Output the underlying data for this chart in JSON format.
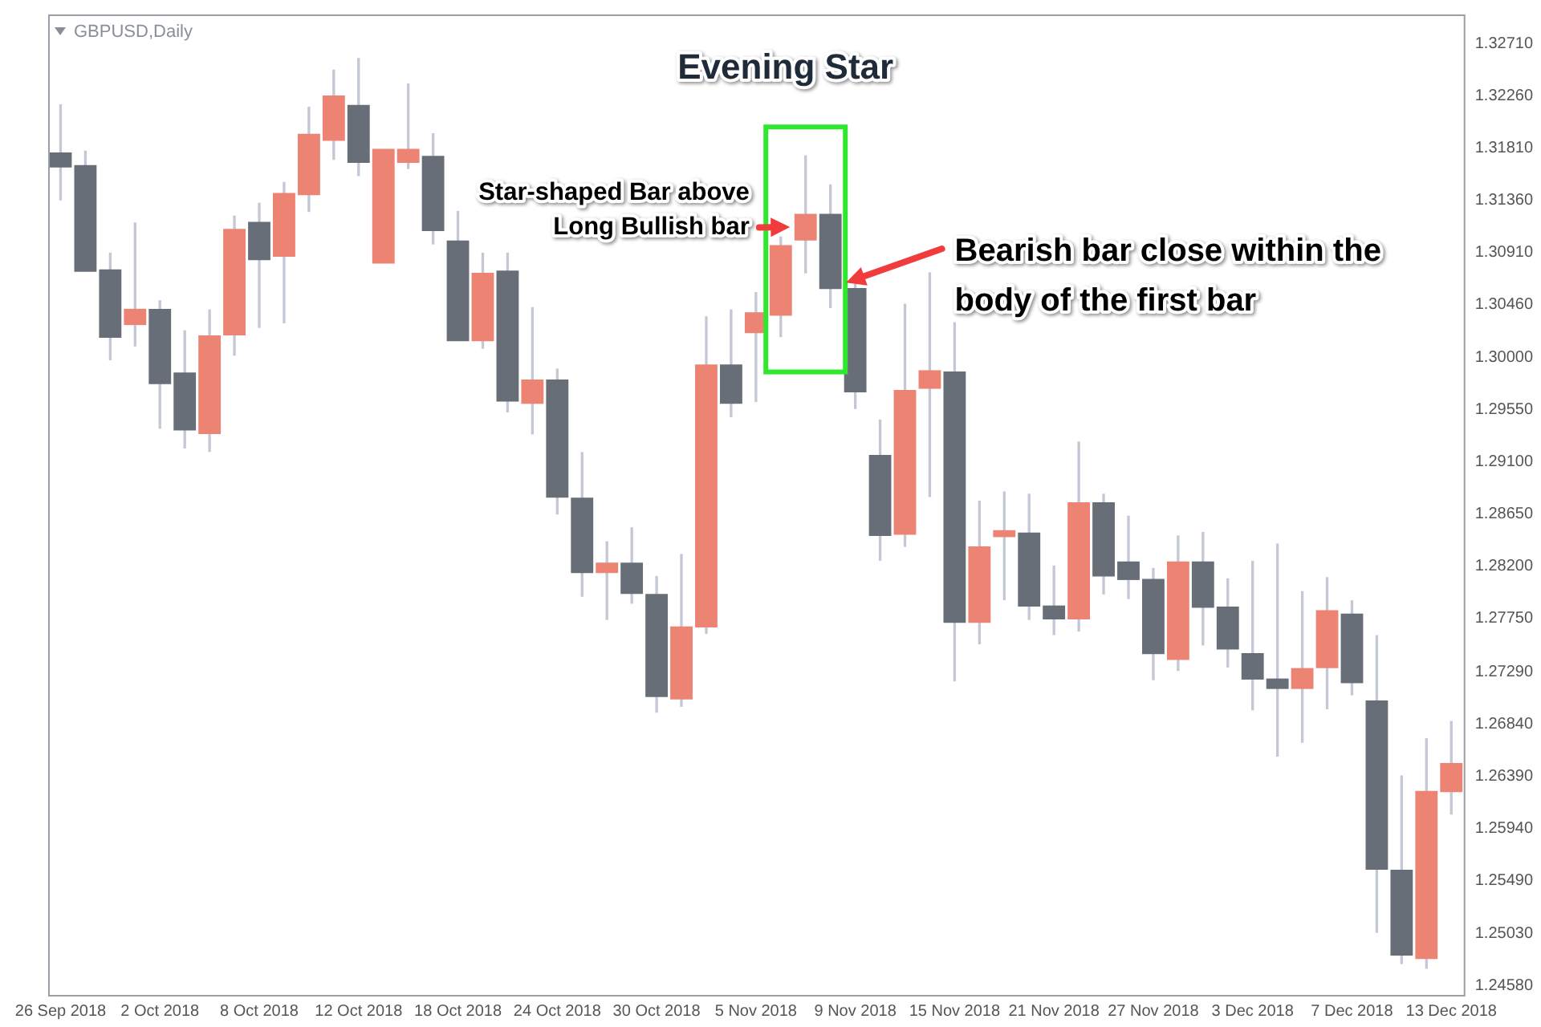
{
  "chart_data": {
    "type": "candlestick",
    "title": "Evening Star",
    "subtitle": "GBPUSD,Daily",
    "annotations": [
      "Star-shaped Bar above Long Bullish bar",
      "Bearish bar close within the body of the first bar"
    ],
    "categories": [
      "26 Sep 2018",
      null,
      null,
      null,
      "2 Oct 2018",
      null,
      null,
      null,
      "8 Oct 2018",
      null,
      null,
      null,
      "12 Oct 2018",
      null,
      null,
      null,
      "18 Oct 2018",
      null,
      null,
      null,
      "24 Oct 2018",
      null,
      null,
      null,
      "30 Oct 2018",
      null,
      null,
      null,
      "5 Nov 2018",
      null,
      null,
      null,
      "9 Nov 2018",
      null,
      null,
      null,
      "15 Nov 2018",
      null,
      null,
      null,
      "21 Nov 2018",
      null,
      null,
      null,
      "27 Nov 2018",
      null,
      null,
      null,
      "3 Dec 2018",
      null,
      null,
      null,
      "7 Dec 2018",
      null,
      null,
      null,
      "13 Dec 2018"
    ],
    "ohlc": [
      [
        1.3177,
        1.3218,
        1.3136,
        1.3164
      ],
      [
        1.3166,
        1.3178,
        1.3074,
        1.3074
      ],
      [
        1.3076,
        1.309,
        1.2998,
        1.3017
      ],
      [
        1.3028,
        1.3116,
        1.301,
        1.3042
      ],
      [
        1.3042,
        1.3049,
        1.2939,
        1.2977
      ],
      [
        1.2987,
        1.3023,
        1.2922,
        1.2937
      ],
      [
        1.2934,
        1.3041,
        1.2919,
        1.3019
      ],
      [
        1.3019,
        1.3122,
        1.3002,
        1.3111
      ],
      [
        1.3117,
        1.3133,
        1.3026,
        1.3084
      ],
      [
        1.3087,
        1.3151,
        1.303,
        1.3142
      ],
      [
        1.314,
        1.3216,
        1.3126,
        1.3193
      ],
      [
        1.3187,
        1.3248,
        1.3171,
        1.3226
      ],
      [
        1.3218,
        1.3258,
        1.3157,
        1.3168
      ],
      [
        1.3081,
        1.318,
        1.3081,
        1.318
      ],
      [
        1.3168,
        1.3236,
        1.3163,
        1.318
      ],
      [
        1.3174,
        1.3193,
        1.3098,
        1.3109
      ],
      [
        1.3101,
        1.3126,
        1.3014,
        1.3014
      ],
      [
        1.3014,
        1.309,
        1.3008,
        1.3073
      ],
      [
        1.3075,
        1.309,
        1.2953,
        1.2962
      ],
      [
        1.296,
        1.3043,
        1.2934,
        1.2981
      ],
      [
        1.2981,
        1.299,
        1.2865,
        1.2879
      ],
      [
        1.2879,
        1.2918,
        1.2794,
        1.2814
      ],
      [
        1.2814,
        1.2841,
        1.2774,
        1.2823
      ],
      [
        1.2823,
        1.2853,
        1.2788,
        1.2796
      ],
      [
        1.2796,
        1.2811,
        1.2694,
        1.2707
      ],
      [
        1.2705,
        1.283,
        1.2699,
        1.2768
      ],
      [
        1.2767,
        1.3035,
        1.2762,
        1.2994
      ],
      [
        1.2994,
        1.3041,
        1.2949,
        1.296
      ],
      [
        1.3021,
        1.3056,
        1.2962,
        1.3039
      ],
      [
        1.3036,
        1.3104,
        1.3018,
        1.3097
      ],
      [
        1.3101,
        1.3174,
        1.3073,
        1.3124
      ],
      [
        1.3124,
        1.3149,
        1.3043,
        1.3059
      ],
      [
        1.306,
        1.3065,
        1.2956,
        1.297
      ],
      [
        1.2916,
        1.2946,
        1.2825,
        1.2846
      ],
      [
        1.2847,
        1.3046,
        1.2837,
        1.2972
      ],
      [
        1.2973,
        1.3073,
        1.288,
        1.2989
      ],
      [
        1.2988,
        1.303,
        1.2721,
        1.2771
      ],
      [
        1.2771,
        1.2876,
        1.2753,
        1.2837
      ],
      [
        1.2845,
        1.2884,
        1.2791,
        1.2851
      ],
      [
        1.2849,
        1.2882,
        1.2774,
        1.2785
      ],
      [
        1.2786,
        1.282,
        1.2761,
        1.2774
      ],
      [
        1.2774,
        1.2927,
        1.2764,
        1.2875
      ],
      [
        1.2875,
        1.2882,
        1.2796,
        1.2811
      ],
      [
        1.2824,
        1.2863,
        1.2792,
        1.2808
      ],
      [
        1.2809,
        1.2818,
        1.2722,
        1.2744
      ],
      [
        1.2739,
        1.2846,
        1.273,
        1.2824
      ],
      [
        1.2824,
        1.2849,
        1.2752,
        1.2784
      ],
      [
        1.2785,
        1.2809,
        1.2733,
        1.2748
      ],
      [
        1.2745,
        1.2824,
        1.2696,
        1.2722
      ],
      [
        1.2723,
        1.2839,
        1.2656,
        1.2714
      ],
      [
        1.2714,
        1.2798,
        1.2668,
        1.2732
      ],
      [
        1.2732,
        1.281,
        1.2697,
        1.2782
      ],
      [
        1.2779,
        1.279,
        1.2709,
        1.2719
      ],
      [
        1.2704,
        1.276,
        1.2504,
        1.2558
      ],
      [
        1.2558,
        1.2639,
        1.2477,
        1.2484
      ],
      [
        1.2481,
        1.2671,
        1.2473,
        1.2626
      ],
      [
        1.2625,
        1.2686,
        1.2606,
        1.265
      ]
    ],
    "colors": [
      "#686e77",
      "#686e77",
      "#686e77",
      "#ec8373",
      "#686e77",
      "#686e77",
      "#ec8373",
      "#ec8373",
      "#686e77",
      "#ec8373",
      "#ec8373",
      "#ec8373",
      "#686e77",
      "#ec8373",
      "#ec8373",
      "#686e77",
      "#686e77",
      "#ec8373",
      "#686e77",
      "#ec8373",
      "#686e77",
      "#686e77",
      "#ec8373",
      "#686e77",
      "#686e77",
      "#ec8373",
      "#ec8373",
      "#686e77",
      "#ec8373",
      "#ec8373",
      "#ec8373",
      "#686e77",
      "#686e77",
      "#686e77",
      "#ec8373",
      "#ec8373",
      "#686e77",
      "#ec8373",
      "#ec8373",
      "#686e77",
      "#686e77",
      "#ec8373",
      "#686e77",
      "#686e77",
      "#686e77",
      "#ec8373",
      "#686e77",
      "#686e77",
      "#686e77",
      "#686e77",
      "#ec8373",
      "#ec8373",
      "#686e77",
      "#686e77",
      "#686e77",
      "#ec8373",
      "#ec8373"
    ],
    "ylim": [
      1.245,
      1.3296
    ],
    "yticks": [
      {
        "value": 1.2458,
        "label": "1.24580"
      },
      {
        "value": 1.2503,
        "label": "1.25030"
      },
      {
        "value": 1.2549,
        "label": "1.25490"
      },
      {
        "value": 1.2594,
        "label": "1.25940"
      },
      {
        "value": 1.2639,
        "label": "1.26390"
      },
      {
        "value": 1.2684,
        "label": "1.26840"
      },
      {
        "value": 1.2729,
        "label": "1.27290"
      },
      {
        "value": 1.2775,
        "label": "1.27750"
      },
      {
        "value": 1.282,
        "label": "1.28200"
      },
      {
        "value": 1.2865,
        "label": "1.28650"
      },
      {
        "value": 1.291,
        "label": "1.29100"
      },
      {
        "value": 1.2955,
        "label": "1.29550"
      },
      {
        "value": 1.3,
        "label": "1.30000"
      },
      {
        "value": 1.3046,
        "label": "1.30460"
      },
      {
        "value": 1.3091,
        "label": "1.30910"
      },
      {
        "value": 1.3136,
        "label": "1.31360"
      },
      {
        "value": 1.3181,
        "label": "1.31810"
      },
      {
        "value": 1.3226,
        "label": "1.32260"
      },
      {
        "value": 1.3271,
        "label": "1.32710"
      }
    ],
    "grid": false,
    "legend": false
  }
}
